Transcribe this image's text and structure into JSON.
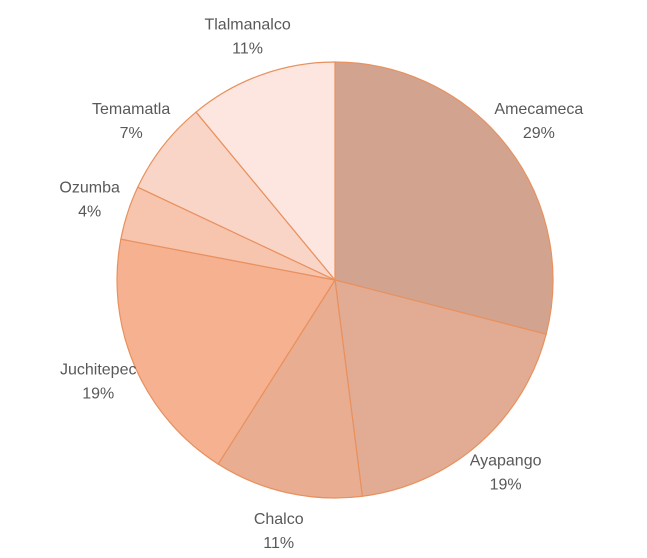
{
  "chart_data": {
    "type": "pie",
    "categories": [
      "Amecameca",
      "Ayapango",
      "Chalco",
      "Juchitepec",
      "Ozumba",
      "Temamatla",
      "Tlalmanalco"
    ],
    "values": [
      29,
      19,
      11,
      19,
      4,
      7,
      11
    ],
    "value_labels": [
      "29%",
      "19%",
      "11%",
      "19%",
      "4%",
      "7%",
      "11%"
    ],
    "colors": [
      "#d2a490",
      "#e2ab93",
      "#e9ae92",
      "#f6b190",
      "#f7c4ae",
      "#f9d5c8",
      "#fce6df"
    ]
  }
}
